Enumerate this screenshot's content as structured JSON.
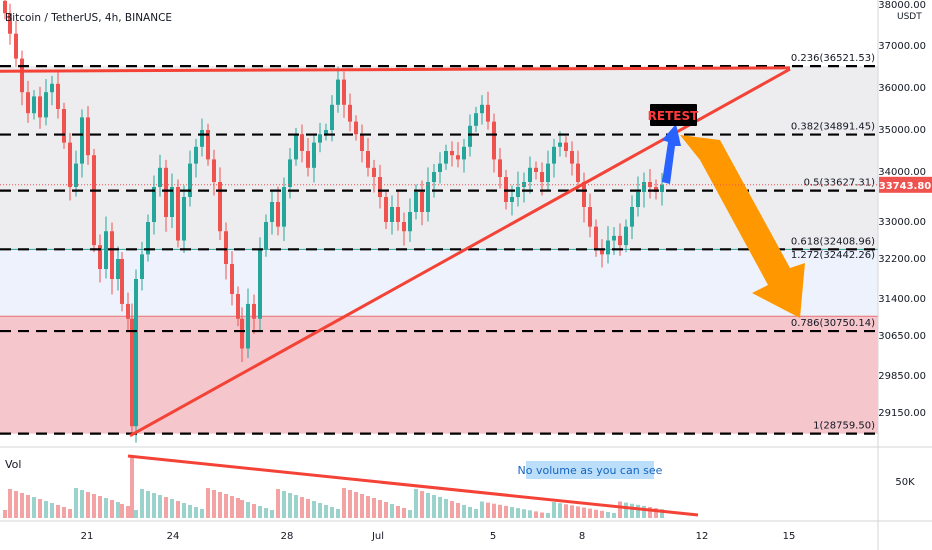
{
  "header": {
    "title": "Bitcoin / TetherUS, 4h, BINANCE",
    "currency": "USDT"
  },
  "colors": {
    "up": "#26a69a",
    "down": "#ef5350",
    "trend_line": "#f44336",
    "arrow_orange": "#ff9800",
    "arrow_blue": "#2962ff",
    "zone_red": "#f5c6cb",
    "zone_blue": "#eef2fc",
    "zone_grey": "#ededf0",
    "price_tag": "#ef5350"
  },
  "annotations": {
    "retest": "RETEST",
    "volume_note": "No volume as you can see"
  },
  "volume": {
    "label": "Vol",
    "axis_label": "50K"
  },
  "chart_data": {
    "type": "candlestick",
    "title": "Bitcoin / TetherUS, 4h, BINANCE",
    "y_axis": {
      "unit": "USDT",
      "ticks": [
        "38000.00",
        "37000.00",
        "36000.00",
        "35000.00",
        "34000.00",
        "33000.00",
        "32200.00",
        "31400.00",
        "30650.00",
        "29850.00",
        "29150.00"
      ],
      "range": [
        28500,
        38300
      ]
    },
    "x_axis": {
      "ticks": [
        "21",
        "24",
        "28",
        "Jul",
        "5",
        "8",
        "12",
        "15"
      ]
    },
    "last_price": "33743.80",
    "fib_levels": [
      {
        "label": "0.236(36521.53)",
        "value": 36521.53
      },
      {
        "label": "0.382(34891.45)",
        "value": 34891.45
      },
      {
        "label": "0.5(33627.31)",
        "value": 33627.31
      },
      {
        "label": "0.618(32408.96)",
        "value": 32408.96
      },
      {
        "label": "1.272(32442.26)",
        "value": 32442.26
      },
      {
        "label": "0.786(30750.14)",
        "value": 30750.14
      },
      {
        "label": "1(28759.50)",
        "value": 28759.5
      }
    ],
    "price_range": {
      "low": 28759.5,
      "high": 38300
    },
    "zones": [
      {
        "name": "upper-zone",
        "from": 32408.96,
        "to": 36521.53
      },
      {
        "name": "middle-zone",
        "from": 31050,
        "to": 32408.96
      },
      {
        "name": "lower-zone",
        "from": 28759.5,
        "to": 31050
      }
    ]
  }
}
